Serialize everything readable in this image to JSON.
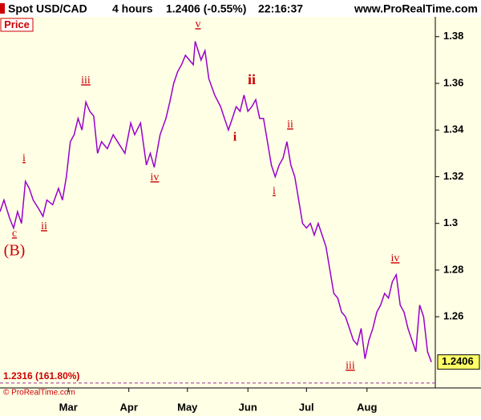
{
  "header": {
    "symbol": "Spot USD/CAD",
    "interval": "4 hours",
    "quote": "1.2406 (-0.55%)",
    "time": "22:16:37",
    "site": "www.ProRealTime.com"
  },
  "chart_data": {
    "type": "line",
    "panel_label": "Price",
    "copyright": "© ProRealTime.com",
    "x": [
      0,
      2,
      5,
      7,
      9,
      11,
      13,
      15,
      17,
      20,
      22,
      24,
      27,
      30,
      32,
      34,
      36,
      38,
      40,
      42,
      44,
      46,
      48,
      50,
      52,
      55,
      58,
      61,
      64,
      67,
      69,
      72,
      75,
      77,
      79,
      82,
      85,
      87,
      89,
      91,
      93,
      95,
      97,
      99,
      100,
      103,
      105,
      107,
      110,
      113,
      115,
      117,
      119,
      121,
      123,
      125,
      127,
      129,
      131,
      133,
      135,
      137,
      139,
      141,
      143,
      145,
      147,
      149,
      151,
      153,
      155,
      157,
      159,
      161,
      163,
      165,
      167,
      169,
      171,
      173,
      175,
      177,
      179,
      181,
      183,
      185,
      187,
      189,
      191,
      193,
      195,
      197,
      199,
      201,
      203,
      205,
      207,
      209,
      211,
      213,
      215,
      217,
      219,
      221
    ],
    "series": [
      {
        "name": "Spot USD/CAD",
        "color": "#9900cc",
        "values": [
          1.305,
          1.31,
          1.302,
          1.298,
          1.305,
          1.3,
          1.318,
          1.315,
          1.31,
          1.306,
          1.303,
          1.31,
          1.308,
          1.315,
          1.31,
          1.32,
          1.335,
          1.338,
          1.345,
          1.34,
          1.352,
          1.348,
          1.346,
          1.33,
          1.335,
          1.332,
          1.338,
          1.334,
          1.33,
          1.343,
          1.338,
          1.343,
          1.325,
          1.33,
          1.324,
          1.338,
          1.345,
          1.352,
          1.36,
          1.365,
          1.368,
          1.372,
          1.37,
          1.368,
          1.378,
          1.37,
          1.374,
          1.362,
          1.355,
          1.35,
          1.345,
          1.34,
          1.345,
          1.35,
          1.348,
          1.355,
          1.348,
          1.35,
          1.353,
          1.345,
          1.345,
          1.335,
          1.325,
          1.32,
          1.325,
          1.328,
          1.335,
          1.325,
          1.32,
          1.31,
          1.3,
          1.298,
          1.3,
          1.295,
          1.3,
          1.295,
          1.29,
          1.28,
          1.27,
          1.268,
          1.262,
          1.26,
          1.255,
          1.25,
          1.248,
          1.255,
          1.242,
          1.25,
          1.255,
          1.262,
          1.265,
          1.27,
          1.268,
          1.275,
          1.278,
          1.265,
          1.262,
          1.255,
          1.25,
          1.245,
          1.265,
          1.26,
          1.245,
          1.2406
        ]
      }
    ],
    "xlim": [
      0,
      223
    ],
    "xticks": [
      {
        "value": 35,
        "label": "Mar"
      },
      {
        "value": 66,
        "label": "Apr"
      },
      {
        "value": 96,
        "label": "May"
      },
      {
        "value": 127,
        "label": "Jun"
      },
      {
        "value": 157,
        "label": "Jul"
      },
      {
        "value": 188,
        "label": "Aug"
      }
    ],
    "ylim": [
      1.2295,
      1.3885
    ],
    "yticks": [
      1.26,
      1.28,
      1.3,
      1.32,
      1.34,
      1.36,
      1.38
    ],
    "target_line": {
      "value": 1.2316,
      "label": "1.2316 (161.80%)",
      "color": "#993399"
    },
    "annotations": [
      "c",
      "(B)",
      "i",
      "ii",
      "iii",
      "iv",
      "v",
      "i",
      "ii",
      "i",
      "ii",
      "iii",
      "iv"
    ]
  }
}
